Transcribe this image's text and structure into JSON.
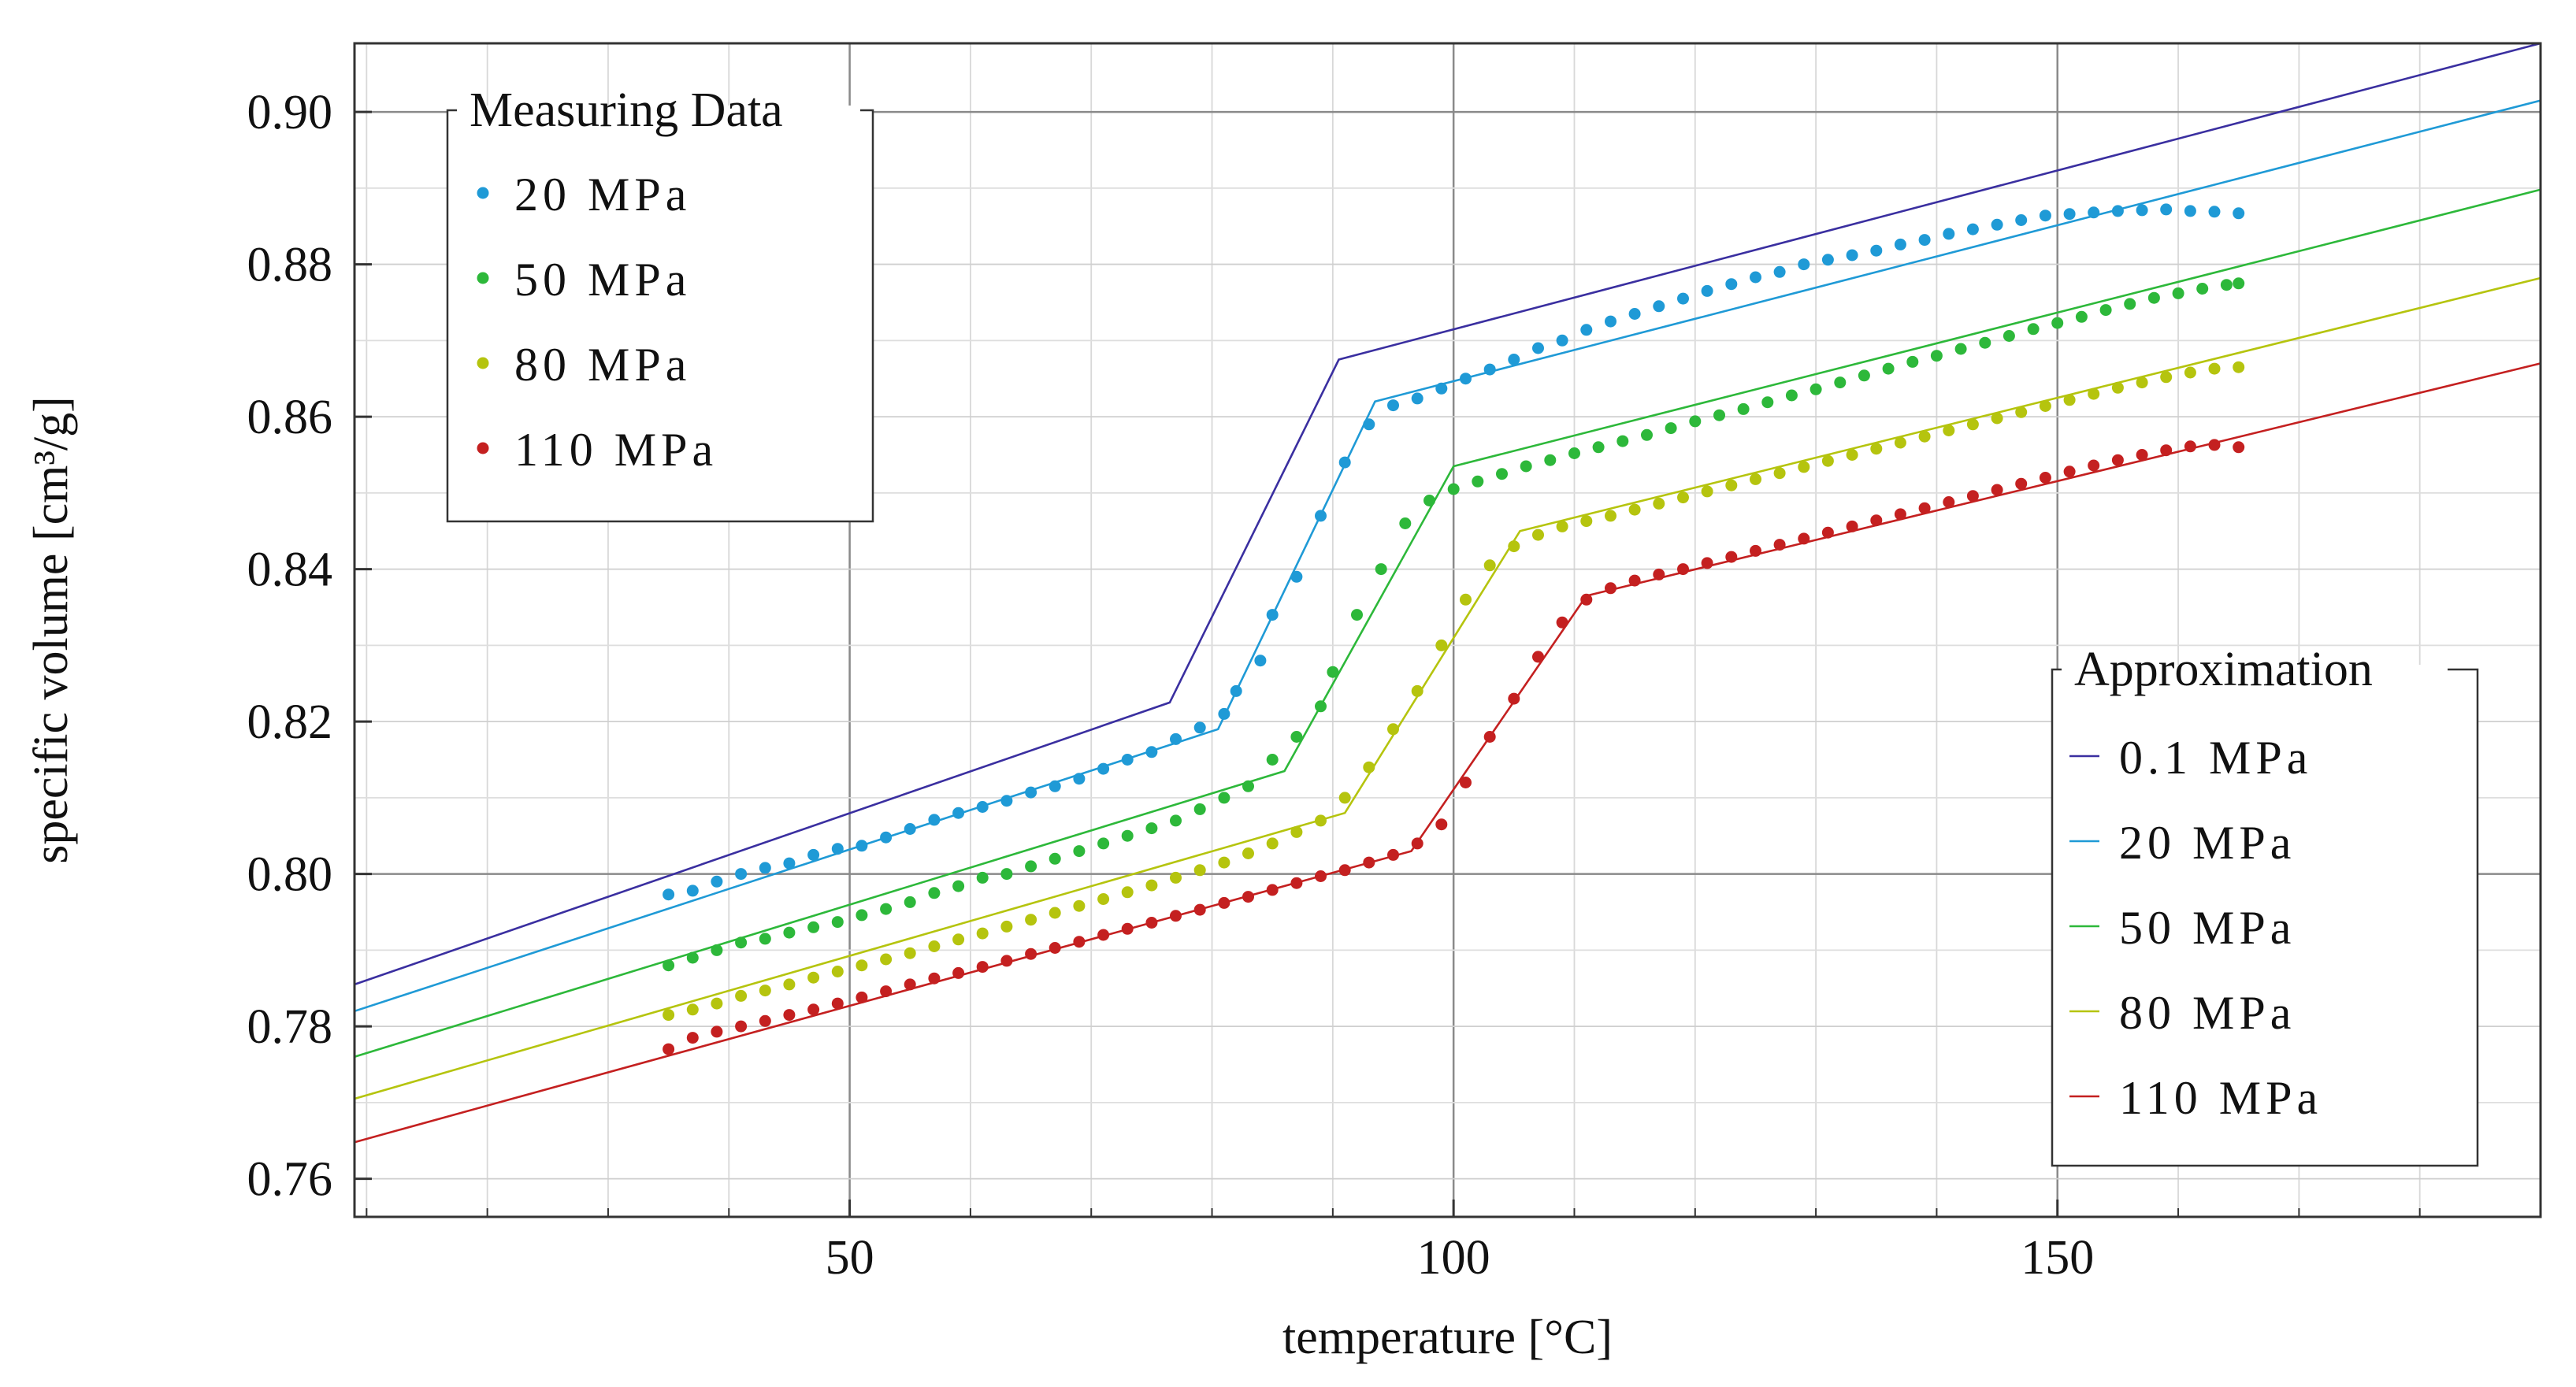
{
  "chart_data": {
    "type": "scatter",
    "title": "",
    "xlabel": "temperature [°C]",
    "ylabel": "specific volume [cm³/g]",
    "xlim": [
      9,
      190
    ],
    "ylim": [
      0.755,
      0.909
    ],
    "x_major_ticks": [
      50,
      100,
      150
    ],
    "x_tick_labels": [
      "50",
      "100",
      "150"
    ],
    "x_minor_step": 10,
    "y_major_ticks": [
      0.76,
      0.78,
      0.8,
      0.82,
      0.84,
      0.86,
      0.88,
      0.9
    ],
    "y_tick_labels": [
      "0.76",
      "0.78",
      "0.80",
      "0.82",
      "0.84",
      "0.86",
      "0.88",
      "0.90"
    ],
    "y_minor_step": 0.01,
    "grid": true,
    "measuring_legend": {
      "title": "Measuring Data",
      "position": "top-left",
      "entries": [
        "20 MPa",
        "50 MPa",
        "80 MPa",
        "110 MPa"
      ]
    },
    "approximation_legend": {
      "title": "Approximation",
      "position": "bottom-right",
      "entries": [
        "0.1 MPa",
        "20 MPa",
        "50 MPa",
        "80 MPa",
        "110 MPa"
      ]
    },
    "measured_series": [
      {
        "name": "20 MPa",
        "color": "#1f9ad6",
        "points": [
          [
            35,
            0.7973
          ],
          [
            37,
            0.7978
          ],
          [
            39,
            0.799
          ],
          [
            41,
            0.8
          ],
          [
            43,
            0.8008
          ],
          [
            45,
            0.8014
          ],
          [
            47,
            0.8025
          ],
          [
            49,
            0.8033
          ],
          [
            51,
            0.8037
          ],
          [
            53,
            0.8048
          ],
          [
            55,
            0.8059
          ],
          [
            57,
            0.8071
          ],
          [
            59,
            0.808
          ],
          [
            61,
            0.8088
          ],
          [
            63,
            0.8096
          ],
          [
            65,
            0.8107
          ],
          [
            67,
            0.8115
          ],
          [
            69,
            0.8125
          ],
          [
            71,
            0.8138
          ],
          [
            73,
            0.815
          ],
          [
            75,
            0.816
          ],
          [
            77,
            0.8177
          ],
          [
            79,
            0.8192
          ],
          [
            81,
            0.821
          ],
          [
            82,
            0.824
          ],
          [
            84,
            0.828
          ],
          [
            85,
            0.834
          ],
          [
            87,
            0.839
          ],
          [
            89,
            0.847
          ],
          [
            91,
            0.854
          ],
          [
            93,
            0.859
          ],
          [
            95,
            0.8615
          ],
          [
            97,
            0.8624
          ],
          [
            99,
            0.8637
          ],
          [
            101,
            0.865
          ],
          [
            103,
            0.8662
          ],
          [
            105,
            0.8675
          ],
          [
            107,
            0.869
          ],
          [
            109,
            0.87
          ],
          [
            111,
            0.8714
          ],
          [
            113,
            0.8725
          ],
          [
            115,
            0.8735
          ],
          [
            117,
            0.8745
          ],
          [
            119,
            0.8755
          ],
          [
            121,
            0.8765
          ],
          [
            123,
            0.8774
          ],
          [
            125,
            0.8783
          ],
          [
            127,
            0.879
          ],
          [
            129,
            0.88
          ],
          [
            131,
            0.8806
          ],
          [
            133,
            0.8812
          ],
          [
            135,
            0.8818
          ],
          [
            137,
            0.8826
          ],
          [
            139,
            0.8832
          ],
          [
            141,
            0.884
          ],
          [
            143,
            0.8846
          ],
          [
            145,
            0.8852
          ],
          [
            147,
            0.8858
          ],
          [
            149,
            0.8864
          ],
          [
            151,
            0.8866
          ],
          [
            153,
            0.8868
          ],
          [
            155,
            0.887
          ],
          [
            157,
            0.8871
          ],
          [
            159,
            0.8872
          ],
          [
            161,
            0.887
          ],
          [
            163,
            0.8869
          ],
          [
            165,
            0.8867
          ]
        ]
      },
      {
        "name": "50 MPa",
        "color": "#2db83a",
        "points": [
          [
            35,
            0.788
          ],
          [
            37,
            0.789
          ],
          [
            39,
            0.79
          ],
          [
            41,
            0.791
          ],
          [
            43,
            0.7915
          ],
          [
            45,
            0.7923
          ],
          [
            47,
            0.793
          ],
          [
            49,
            0.7937
          ],
          [
            51,
            0.7946
          ],
          [
            53,
            0.7954
          ],
          [
            55,
            0.7963
          ],
          [
            57,
            0.7975
          ],
          [
            59,
            0.7984
          ],
          [
            61,
            0.7995
          ],
          [
            63,
            0.8
          ],
          [
            65,
            0.801
          ],
          [
            67,
            0.802
          ],
          [
            69,
            0.803
          ],
          [
            71,
            0.804
          ],
          [
            73,
            0.805
          ],
          [
            75,
            0.806
          ],
          [
            77,
            0.807
          ],
          [
            79,
            0.8085
          ],
          [
            81,
            0.81
          ],
          [
            83,
            0.8115
          ],
          [
            85,
            0.815
          ],
          [
            87,
            0.818
          ],
          [
            89,
            0.822
          ],
          [
            90,
            0.8265
          ],
          [
            92,
            0.834
          ],
          [
            94,
            0.84
          ],
          [
            96,
            0.846
          ],
          [
            98,
            0.849
          ],
          [
            100,
            0.8505
          ],
          [
            102,
            0.8515
          ],
          [
            104,
            0.8525
          ],
          [
            106,
            0.8535
          ],
          [
            108,
            0.8543
          ],
          [
            110,
            0.8552
          ],
          [
            112,
            0.856
          ],
          [
            114,
            0.8568
          ],
          [
            116,
            0.8576
          ],
          [
            118,
            0.8585
          ],
          [
            120,
            0.8594
          ],
          [
            122,
            0.8602
          ],
          [
            124,
            0.861
          ],
          [
            126,
            0.8619
          ],
          [
            128,
            0.8628
          ],
          [
            130,
            0.8636
          ],
          [
            132,
            0.8645
          ],
          [
            134,
            0.8654
          ],
          [
            136,
            0.8663
          ],
          [
            138,
            0.8672
          ],
          [
            140,
            0.868
          ],
          [
            142,
            0.8689
          ],
          [
            144,
            0.8697
          ],
          [
            146,
            0.8706
          ],
          [
            148,
            0.8715
          ],
          [
            150,
            0.8723
          ],
          [
            152,
            0.8731
          ],
          [
            154,
            0.874
          ],
          [
            156,
            0.8748
          ],
          [
            158,
            0.8756
          ],
          [
            160,
            0.8762
          ],
          [
            162,
            0.8768
          ],
          [
            164,
            0.8773
          ],
          [
            165,
            0.8775
          ]
        ]
      },
      {
        "name": "80 MPa",
        "color": "#b5c40e",
        "points": [
          [
            35,
            0.7815
          ],
          [
            37,
            0.7822
          ],
          [
            39,
            0.783
          ],
          [
            41,
            0.784
          ],
          [
            43,
            0.7847
          ],
          [
            45,
            0.7855
          ],
          [
            47,
            0.7864
          ],
          [
            49,
            0.7872
          ],
          [
            51,
            0.788
          ],
          [
            53,
            0.7888
          ],
          [
            55,
            0.7896
          ],
          [
            57,
            0.7905
          ],
          [
            59,
            0.7914
          ],
          [
            61,
            0.7922
          ],
          [
            63,
            0.7931
          ],
          [
            65,
            0.794
          ],
          [
            67,
            0.7949
          ],
          [
            69,
            0.7958
          ],
          [
            71,
            0.7967
          ],
          [
            73,
            0.7976
          ],
          [
            75,
            0.7985
          ],
          [
            77,
            0.7995
          ],
          [
            79,
            0.8005
          ],
          [
            81,
            0.8015
          ],
          [
            83,
            0.8027
          ],
          [
            85,
            0.804
          ],
          [
            87,
            0.8055
          ],
          [
            89,
            0.807
          ],
          [
            91,
            0.81
          ],
          [
            93,
            0.814
          ],
          [
            95,
            0.819
          ],
          [
            97,
            0.824
          ],
          [
            99,
            0.83
          ],
          [
            101,
            0.836
          ],
          [
            103,
            0.8405
          ],
          [
            105,
            0.843
          ],
          [
            107,
            0.8445
          ],
          [
            109,
            0.8456
          ],
          [
            111,
            0.8463
          ],
          [
            113,
            0.847
          ],
          [
            115,
            0.8478
          ],
          [
            117,
            0.8486
          ],
          [
            119,
            0.8494
          ],
          [
            121,
            0.8502
          ],
          [
            123,
            0.851
          ],
          [
            125,
            0.8518
          ],
          [
            127,
            0.8526
          ],
          [
            129,
            0.8534
          ],
          [
            131,
            0.8542
          ],
          [
            133,
            0.855
          ],
          [
            135,
            0.8558
          ],
          [
            137,
            0.8566
          ],
          [
            139,
            0.8574
          ],
          [
            141,
            0.8582
          ],
          [
            143,
            0.859
          ],
          [
            145,
            0.8598
          ],
          [
            147,
            0.8606
          ],
          [
            149,
            0.8614
          ],
          [
            151,
            0.8622
          ],
          [
            153,
            0.863
          ],
          [
            155,
            0.8638
          ],
          [
            157,
            0.8645
          ],
          [
            159,
            0.8652
          ],
          [
            161,
            0.8658
          ],
          [
            163,
            0.8663
          ],
          [
            165,
            0.8665
          ]
        ]
      },
      {
        "name": "110 MPa",
        "color": "#c42020",
        "points": [
          [
            35,
            0.777
          ],
          [
            37,
            0.7785
          ],
          [
            39,
            0.7793
          ],
          [
            41,
            0.78
          ],
          [
            43,
            0.7807
          ],
          [
            45,
            0.7815
          ],
          [
            47,
            0.7822
          ],
          [
            49,
            0.783
          ],
          [
            51,
            0.7838
          ],
          [
            53,
            0.7846
          ],
          [
            55,
            0.7855
          ],
          [
            57,
            0.7863
          ],
          [
            59,
            0.787
          ],
          [
            61,
            0.7878
          ],
          [
            63,
            0.7886
          ],
          [
            65,
            0.7895
          ],
          [
            67,
            0.7903
          ],
          [
            69,
            0.7911
          ],
          [
            71,
            0.792
          ],
          [
            73,
            0.7928
          ],
          [
            75,
            0.7936
          ],
          [
            77,
            0.7945
          ],
          [
            79,
            0.7953
          ],
          [
            81,
            0.7962
          ],
          [
            83,
            0.797
          ],
          [
            85,
            0.7979
          ],
          [
            87,
            0.7988
          ],
          [
            89,
            0.7997
          ],
          [
            91,
            0.8005
          ],
          [
            93,
            0.8015
          ],
          [
            95,
            0.8025
          ],
          [
            97,
            0.804
          ],
          [
            99,
            0.8065
          ],
          [
            101,
            0.812
          ],
          [
            103,
            0.818
          ],
          [
            105,
            0.823
          ],
          [
            107,
            0.8285
          ],
          [
            109,
            0.833
          ],
          [
            111,
            0.836
          ],
          [
            113,
            0.8375
          ],
          [
            115,
            0.8385
          ],
          [
            117,
            0.8393
          ],
          [
            119,
            0.84
          ],
          [
            121,
            0.8408
          ],
          [
            123,
            0.8416
          ],
          [
            125,
            0.8424
          ],
          [
            127,
            0.8432
          ],
          [
            129,
            0.844
          ],
          [
            131,
            0.8448
          ],
          [
            133,
            0.8456
          ],
          [
            135,
            0.8464
          ],
          [
            137,
            0.8472
          ],
          [
            139,
            0.848
          ],
          [
            141,
            0.8488
          ],
          [
            143,
            0.8496
          ],
          [
            145,
            0.8504
          ],
          [
            147,
            0.8512
          ],
          [
            149,
            0.852
          ],
          [
            151,
            0.8528
          ],
          [
            153,
            0.8536
          ],
          [
            155,
            0.8543
          ],
          [
            157,
            0.855
          ],
          [
            159,
            0.8556
          ],
          [
            161,
            0.8561
          ],
          [
            163,
            0.8563
          ],
          [
            165,
            0.856
          ]
        ]
      }
    ],
    "approximation_series": [
      {
        "name": "0.1 MPa",
        "color": "#3a2fa0",
        "x": [
          9,
          76.5,
          90.5,
          190
        ],
        "y": [
          0.7855,
          0.8225,
          0.8675,
          0.909
        ]
      },
      {
        "name": "20 MPa",
        "color": "#1f9ad6",
        "x": [
          9,
          80.5,
          93.5,
          190
        ],
        "y": [
          0.782,
          0.819,
          0.862,
          0.9015
        ]
      },
      {
        "name": "50 MPa",
        "color": "#2db83a",
        "x": [
          9,
          86,
          100,
          190
        ],
        "y": [
          0.776,
          0.8135,
          0.8535,
          0.8898
        ]
      },
      {
        "name": "80 MPa",
        "color": "#b5c40e",
        "x": [
          9,
          91,
          105.5,
          190
        ],
        "y": [
          0.7705,
          0.808,
          0.845,
          0.8782
        ]
      },
      {
        "name": "110 MPa",
        "color": "#c42020",
        "x": [
          9,
          96.5,
          111,
          190
        ],
        "y": [
          0.7648,
          0.803,
          0.8365,
          0.867
        ]
      }
    ]
  }
}
